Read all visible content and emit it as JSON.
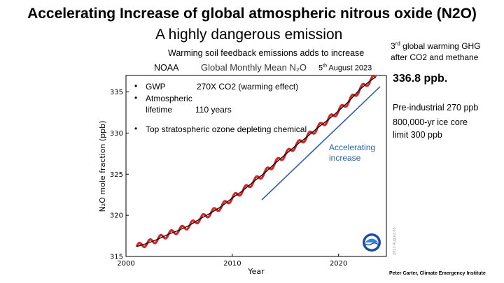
{
  "slide": {
    "title": "Accelerating Increase of global atmospheric nitrous oxide (N2O)",
    "subtitle": "A highly dangerous emission",
    "note": "Warming soil feedback emissions adds to increase",
    "rank_prefix": "3",
    "rank_sup": "rd",
    "rank_line1_rest": " global warming GHG",
    "rank_line2": "after CO2 and methane",
    "current_value": "336.8 ppb.",
    "preindustrial": "Pre-industrial 270 ppb",
    "icecore_line1": "800,000-yr ice core",
    "icecore_line2": "limit 300 ppb",
    "credit": "Peter Carter, Climate Emergency Institute"
  },
  "chart_header": {
    "source": "NOAA",
    "title": "Global Monthly Mean N₂O",
    "date_day": "5",
    "date_sup": "th",
    "date_rest": " August 2023"
  },
  "facts": [
    {
      "bullet": "•",
      "label": "GWP",
      "value": "270X CO2 (warming effect)"
    },
    {
      "bullet": "•",
      "label": "Atmospheric",
      "label2": "lifetime",
      "value": "110 years"
    },
    {
      "bullet": "•",
      "label": "Top stratospheric ozone depleting chemical"
    }
  ],
  "annotation": {
    "line1": "Accelerating",
    "line2": "increase"
  },
  "watermark": "2023 August 05",
  "colors": {
    "data": "#d62728",
    "trend": "#000000",
    "arrow": "#2f5fa8"
  },
  "chart_data": {
    "type": "line",
    "xlabel": "Year",
    "ylabel": "N₂O mole fraction (ppb)",
    "xlim": [
      2000,
      2024.5
    ],
    "ylim": [
      315,
      337
    ],
    "xticks": [
      2000,
      2010,
      2020
    ],
    "yticks": [
      315,
      320,
      325,
      330,
      335
    ],
    "grid": false,
    "series": [
      {
        "style": "monthly-red",
        "x": [
          2001.0,
          2002.0,
          2003.0,
          2004.0,
          2005.0,
          2006.0,
          2007.0,
          2008.0,
          2009.0,
          2010.0,
          2011.0,
          2012.0,
          2013.0,
          2014.0,
          2015.0,
          2016.0,
          2017.0,
          2018.0,
          2019.0,
          2020.0,
          2021.0,
          2022.0,
          2023.0,
          2023.5
        ],
        "y": [
          316.2,
          316.6,
          317.1,
          317.7,
          318.2,
          318.8,
          319.6,
          320.3,
          321.1,
          322.1,
          323.0,
          324.1,
          325.1,
          326.3,
          327.4,
          328.5,
          329.5,
          330.6,
          331.6,
          332.7,
          333.9,
          335.3,
          336.4,
          336.8
        ]
      },
      {
        "style": "trend-black",
        "x": [
          2001.0,
          2002.0,
          2003.0,
          2004.0,
          2005.0,
          2006.0,
          2007.0,
          2008.0,
          2009.0,
          2010.0,
          2011.0,
          2012.0,
          2013.0,
          2014.0,
          2015.0,
          2016.0,
          2017.0,
          2018.0,
          2019.0,
          2020.0,
          2021.0,
          2022.0,
          2023.0,
          2023.5
        ],
        "y": [
          316.2,
          316.6,
          317.1,
          317.7,
          318.2,
          318.8,
          319.6,
          320.3,
          321.1,
          322.1,
          323.0,
          324.1,
          325.1,
          326.3,
          327.4,
          328.5,
          329.5,
          330.6,
          331.6,
          332.7,
          333.9,
          335.3,
          336.4,
          336.8
        ]
      }
    ]
  }
}
